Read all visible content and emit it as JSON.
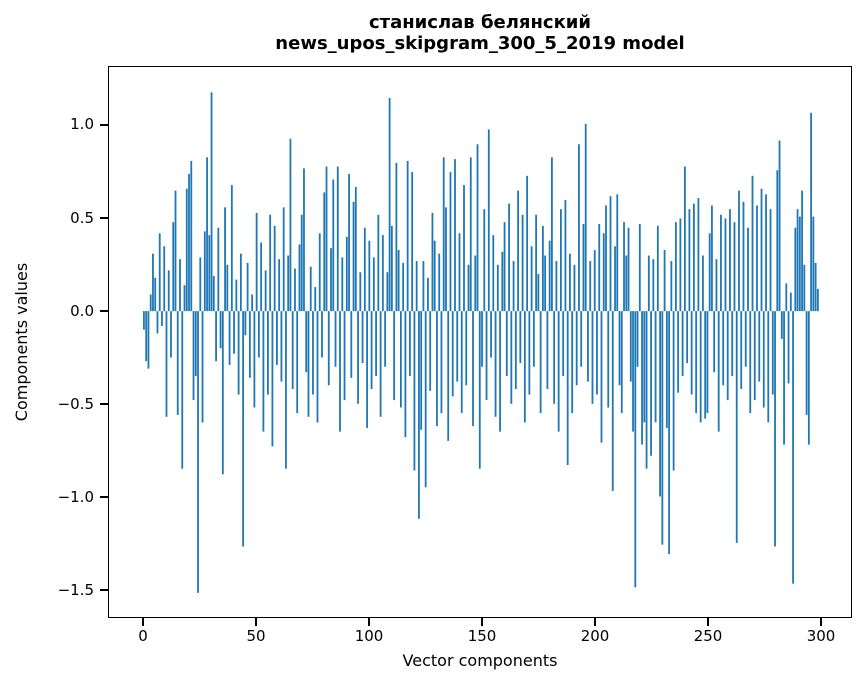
{
  "chart_data": {
    "type": "bar",
    "title_line1": "станислав белянский",
    "title_line2": "news_upos_skipgram_300_5_2019 model",
    "xlabel": "Vector components",
    "ylabel": "Components values",
    "bar_color": "#1f77b4",
    "background": "#ffffff",
    "spine_color": "#000000",
    "x_start": 0,
    "n_components": 300,
    "xlim": [
      -15.5,
      313.7
    ],
    "ylim": [
      -1.65,
      1.317
    ],
    "grid": false,
    "legend": false,
    "xtick_values": [
      0,
      50,
      100,
      150,
      200,
      250,
      300
    ],
    "xtick_labels": [
      "0",
      "50",
      "100",
      "150",
      "200",
      "250",
      "300"
    ],
    "ytick_values": [
      1.0,
      0.5,
      0.0,
      -0.5,
      -1.0,
      -1.5
    ],
    "ytick_labels": [
      "1.0",
      "0.5",
      "0.0",
      "−0.5",
      "−1.0",
      "−1.5"
    ],
    "values": [
      -0.1,
      -0.27,
      -0.31,
      0.09,
      0.31,
      0.18,
      -0.12,
      0.42,
      -0.08,
      0.35,
      -0.57,
      0.22,
      -0.25,
      0.48,
      0.65,
      -0.56,
      0.28,
      -0.85,
      0.14,
      0.66,
      0.74,
      0.81,
      -0.48,
      -0.35,
      -1.52,
      0.29,
      -0.6,
      0.43,
      0.83,
      0.41,
      1.18,
      0.19,
      -0.27,
      0.45,
      -0.2,
      -0.88,
      0.56,
      0.25,
      -0.29,
      0.68,
      -0.23,
      0.17,
      -0.45,
      0.31,
      -1.27,
      -0.13,
      0.26,
      -0.36,
      0.09,
      -0.52,
      0.53,
      -0.25,
      0.37,
      -0.65,
      0.22,
      -0.45,
      0.52,
      -0.73,
      0.46,
      -0.29,
      0.28,
      -0.38,
      0.56,
      -0.85,
      0.3,
      0.93,
      -0.42,
      0.23,
      -0.55,
      0.36,
      0.52,
      0.77,
      -0.33,
      -0.57,
      0.24,
      -0.45,
      0.13,
      -0.6,
      0.42,
      -0.25,
      0.64,
      0.78,
      -0.4,
      0.34,
      0.71,
      -0.3,
      0.78,
      -0.65,
      0.29,
      -0.48,
      0.4,
      0.74,
      -0.36,
      0.59,
      0.67,
      -0.5,
      0.21,
      -0.28,
      0.45,
      -0.63,
      0.38,
      -0.42,
      0.29,
      -0.35,
      0.52,
      -0.57,
      0.41,
      -0.3,
      0.21,
      1.15,
      0.46,
      -0.48,
      0.8,
      0.33,
      -0.52,
      0.26,
      -0.68,
      0.81,
      -0.35,
      0.75,
      -0.86,
      0.27,
      -1.12,
      -0.64,
      0.27,
      -0.95,
      0.18,
      -0.43,
      0.53,
      0.38,
      -0.62,
      0.31,
      -0.55,
      0.83,
      0.56,
      -0.7,
      0.75,
      -0.46,
      0.82,
      -0.38,
      0.42,
      -0.55,
      0.68,
      -0.4,
      0.25,
      0.83,
      -0.62,
      0.3,
      0.9,
      -0.85,
      -0.3,
      0.55,
      -0.48,
      0.98,
      -0.25,
      0.41,
      -0.57,
      0.25,
      -0.65,
      0.32,
      0.48,
      -0.35,
      0.58,
      -0.5,
      0.27,
      -0.42,
      0.65,
      -0.28,
      0.52,
      -0.6,
      0.73,
      -0.45,
      0.35,
      -0.3,
      0.52,
      0.2,
      -0.55,
      0.46,
      0.3,
      -0.42,
      0.38,
      0.83,
      -0.5,
      0.27,
      -0.65,
      0.55,
      -0.35,
      0.6,
      -0.83,
      0.31,
      -0.55,
      0.25,
      -0.4,
      0.9,
      -0.3,
      0.47,
      1.01,
      -0.38,
      0.27,
      -0.5,
      0.33,
      -0.45,
      0.47,
      -0.71,
      0.42,
      0.57,
      -0.52,
      0.62,
      -0.97,
      0.35,
      0.63,
      -0.4,
      -0.55,
      0.48,
      0.3,
      0.45,
      -0.38,
      -0.65,
      -1.49,
      -0.3,
      0.47,
      -0.72,
      -0.6,
      -0.85,
      0.3,
      -0.78,
      0.28,
      -0.6,
      0.46,
      -1.0,
      -1.26,
      0.33,
      -0.63,
      -1.31,
      0.27,
      -0.86,
      0.48,
      -0.44,
      0.5,
      -0.35,
      0.78,
      -0.28,
      0.55,
      -0.45,
      0.58,
      -0.55,
      0.61,
      -0.6,
      0.3,
      -0.58,
      -0.55,
      0.42,
      0.57,
      -0.33,
      0.28,
      -0.65,
      0.52,
      -0.4,
      0.5,
      -0.48,
      0.55,
      -0.35,
      0.48,
      -1.25,
      0.65,
      -0.42,
      0.59,
      -0.3,
      0.45,
      -0.55,
      0.73,
      -0.48,
      0.57,
      -0.38,
      0.66,
      -0.52,
      0.63,
      -0.6,
      0.55,
      -0.45,
      -1.27,
      0.76,
      0.92,
      -0.15,
      -0.72,
      0.15,
      -0.39,
      0.1,
      -1.47,
      0.45,
      0.55,
      0.51,
      0.65,
      0.25,
      -0.56,
      -0.72,
      1.07,
      0.51,
      0.26,
      0.12
    ]
  }
}
